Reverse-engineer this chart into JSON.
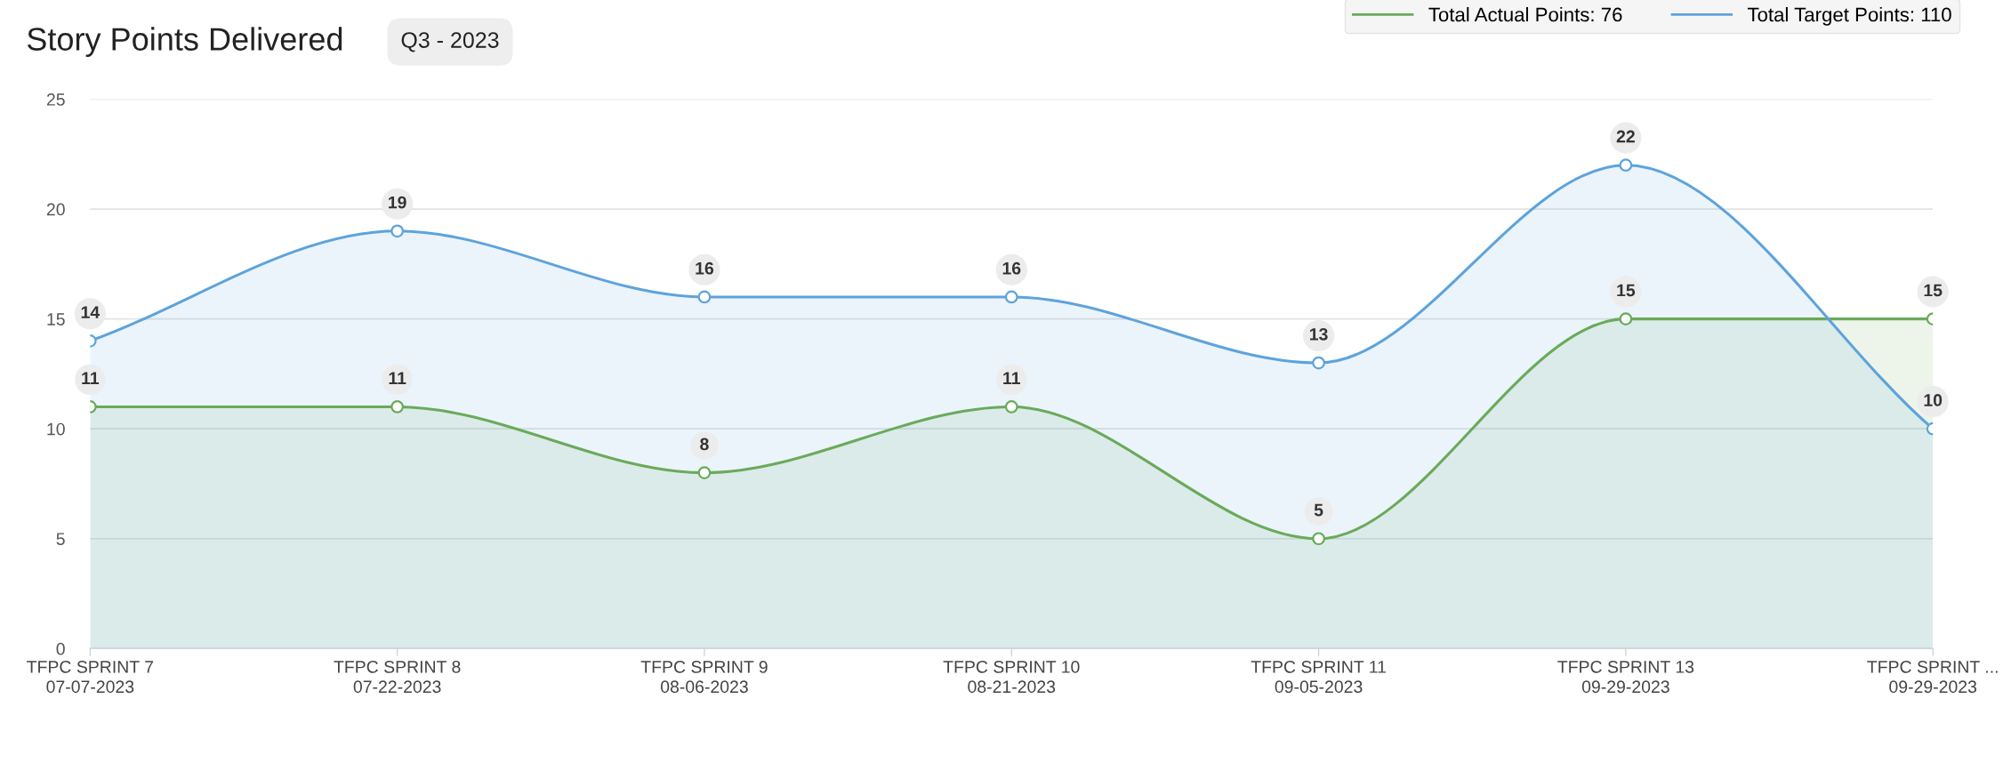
{
  "chart_data": {
    "type": "area",
    "title": "Story Points Delivered",
    "subtitle": "Q3 - 2023",
    "categories": [
      "TFPC SPRINT 7\n07-07-2023",
      "TFPC SPRINT 8\n07-22-2023",
      "TFPC SPRINT 9\n08-06-2023",
      "TFPC SPRINT 10\n08-21-2023",
      "TFPC SPRINT 11\n09-05-2023",
      "TFPC SPRINT 13\n09-29-2023",
      "TFPC SPRINT ...\n09-29-2023"
    ],
    "series": [
      {
        "name": "Total Actual Points: 76",
        "color": "#6aaa5a",
        "values": [
          11,
          11,
          8,
          11,
          5,
          15,
          15
        ]
      },
      {
        "name": "Total Target Points: 110",
        "color": "#5ea3dc",
        "values": [
          14,
          19,
          16,
          16,
          13,
          22,
          10
        ]
      }
    ],
    "ylim": [
      0,
      25
    ],
    "yticks": [
      0,
      5,
      10,
      15,
      20,
      25
    ],
    "grid": "y",
    "legend": "top right",
    "marker": "circle",
    "line_style": "solid",
    "data_labels": true
  }
}
